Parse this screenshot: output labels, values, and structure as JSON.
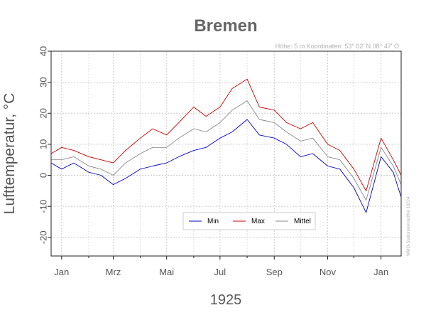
{
  "chart_data": {
    "type": "line",
    "title": "Bremen",
    "meta_text": "Höhe: 5 m   Koordinaten: 53° 02' N  08° 47' O",
    "xlabel": "1925",
    "ylabel": "Lufttemperatur, °C",
    "source_text": "WMO-Stationskennziffer 10224",
    "yticks": [
      -20,
      -10,
      0,
      10,
      20,
      30,
      40
    ],
    "ylim": [
      -26,
      40
    ],
    "xlim": [
      "1924-12-20",
      "1926-01-24"
    ],
    "xticks": [
      {
        "date": "1925-01-01",
        "label": "Jan"
      },
      {
        "date": "1925-03-01",
        "label": "Mrz"
      },
      {
        "date": "1925-05-01",
        "label": "Mai"
      },
      {
        "date": "1925-07-01",
        "label": "Jul"
      },
      {
        "date": "1925-09-01",
        "label": "Sep"
      },
      {
        "date": "1925-11-01",
        "label": "Nov"
      },
      {
        "date": "1926-01-01",
        "label": "Jan"
      }
    ],
    "grid": true,
    "legend_position": "bottom-center",
    "x": [
      "1924-12-20",
      "1925-01-01",
      "1925-01-15",
      "1925-02-01",
      "1925-02-15",
      "1925-03-01",
      "1925-03-15",
      "1925-04-01",
      "1925-04-15",
      "1925-05-01",
      "1925-05-15",
      "1925-06-01",
      "1925-06-15",
      "1925-07-01",
      "1925-07-15",
      "1925-08-01",
      "1925-08-15",
      "1925-09-01",
      "1925-09-15",
      "1925-10-01",
      "1925-10-15",
      "1925-11-01",
      "1925-11-15",
      "1925-12-01",
      "1925-12-15",
      "1926-01-01",
      "1926-01-15",
      "1926-01-24"
    ],
    "series": [
      {
        "name": "Min",
        "color": "#0000cc",
        "values": [
          4,
          2,
          4,
          1,
          0,
          -3,
          -1,
          2,
          3,
          4,
          6,
          8,
          9,
          12,
          14,
          18,
          13,
          12,
          10,
          6,
          7,
          3,
          2,
          -4,
          -12,
          6,
          1,
          -7
        ]
      },
      {
        "name": "Max",
        "color": "#cc0000",
        "values": [
          7,
          9,
          8,
          6,
          5,
          4,
          8,
          12,
          15,
          13,
          17,
          22,
          19,
          22,
          28,
          31,
          22,
          21,
          17,
          15,
          17,
          10,
          8,
          2,
          -5,
          12,
          5,
          0
        ]
      },
      {
        "name": "Mittel",
        "color": "#888888",
        "values": [
          5,
          5,
          6,
          3,
          2,
          0,
          4,
          7,
          9,
          9,
          12,
          15,
          14,
          17,
          21,
          24,
          18,
          17,
          14,
          11,
          12,
          6,
          5,
          -1,
          -8,
          9,
          3,
          -3
        ]
      }
    ]
  }
}
